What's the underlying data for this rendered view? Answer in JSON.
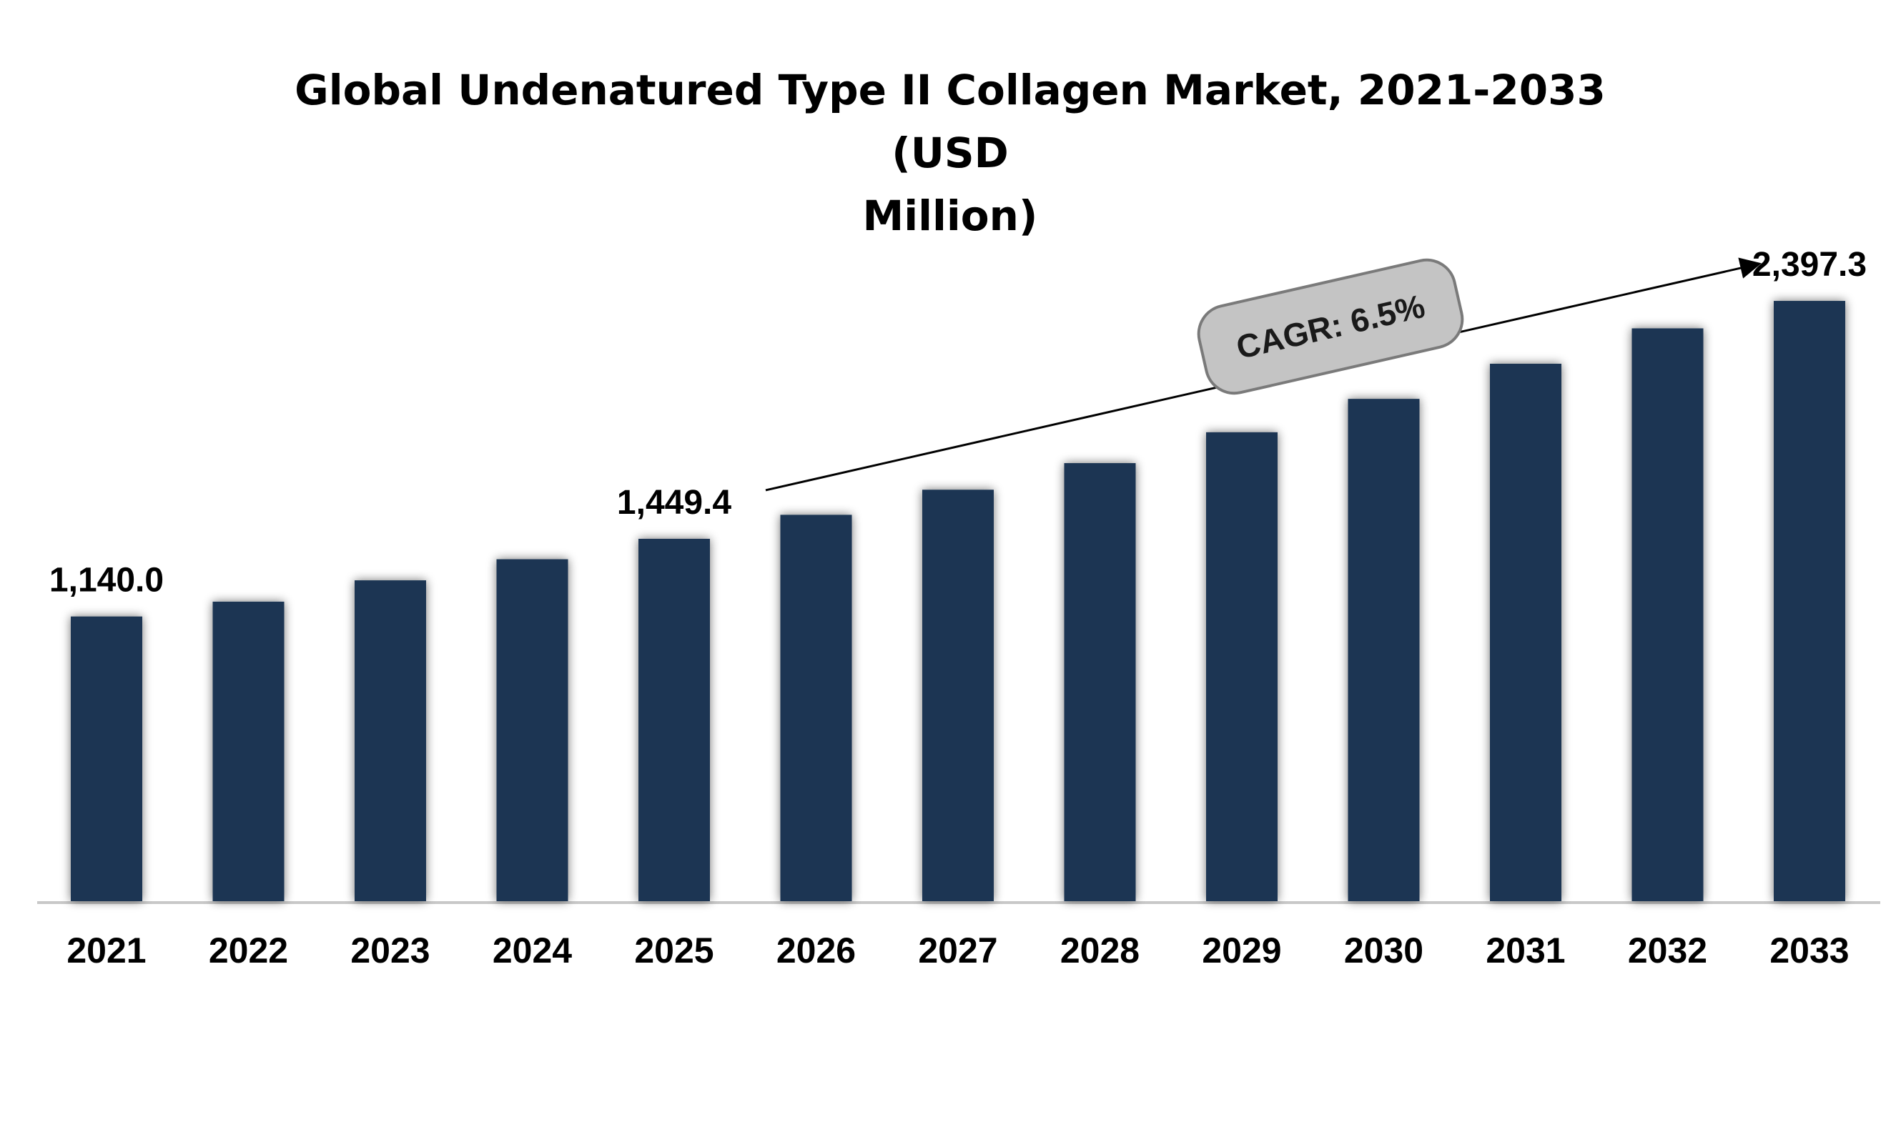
{
  "chart_data": {
    "type": "bar",
    "title": "Global Undenatured Type II Collagen Market, 2021-2033 (USD Million)",
    "title_lines": [
      "Global Undenatured Type II Collagen Market, 2021-2033 (USD",
      "Million)"
    ],
    "categories": [
      "2021",
      "2022",
      "2023",
      "2024",
      "2025",
      "2026",
      "2027",
      "2028",
      "2029",
      "2030",
      "2031",
      "2032",
      "2033"
    ],
    "values": [
      1140.0,
      1199.0,
      1284.0,
      1368.0,
      1449.4,
      1545.0,
      1645.0,
      1751.0,
      1874.0,
      2007.0,
      2147.0,
      2288.0,
      2397.3
    ],
    "data_labels": [
      {
        "index": 0,
        "text": "1,140.0"
      },
      {
        "index": 4,
        "text": "1,449.4"
      },
      {
        "index": 12,
        "text": "2,397.3"
      }
    ],
    "annotation": {
      "text": "CAGR: 6.5%",
      "from_index": 4,
      "to_index": 12
    },
    "xlabel": "",
    "ylabel": "",
    "ylim": [
      0,
      2500
    ],
    "grid": false,
    "legend": "none",
    "colors": {
      "bar": "#1b3553",
      "axis": "#c8c8c8",
      "badge_fill": "#c4c4c4",
      "badge_stroke": "#7a7a7a",
      "text": "#000000"
    }
  }
}
